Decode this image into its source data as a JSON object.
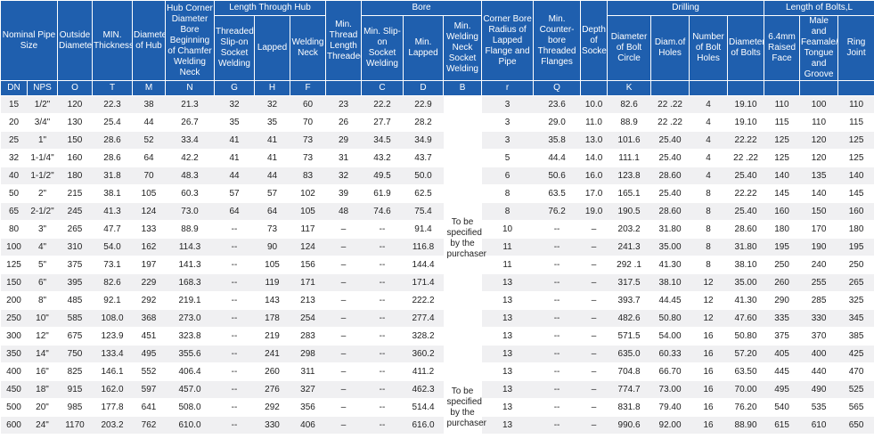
{
  "header": {
    "row1": {
      "nps": "Nominal Pipe Size",
      "o": "Outside Diameter",
      "t": "MIN. Thickness",
      "m": "Diameter of Hub",
      "n": "Hub Corner Diameter Bore Beginning of Chamfer Welding Neck",
      "length_hub": "Length Through Hub",
      "thread": "Min. Thread Length Threaded",
      "bore": "Bore",
      "r": "Corner Bore Radius of Lapped Flange and Pipe",
      "q": "Min. Counter-bore Threaded Flanges",
      "depth": "Depth of Socket",
      "drilling": "Drilling",
      "bolts": "Length of Bolts,L"
    },
    "row2": [
      "Threaded Slip-on Socket Welding",
      "Lapped",
      "Welding Neck",
      "Min. Slip-on Socket Welding",
      "Min. Lapped",
      "Min. Welding Neck Socket Welding",
      "Diameter of Bolt Circle",
      "Diam.of Holes",
      "Number of Bolt Holes",
      "Diameter of Bolts",
      "6.4mm Raised Face",
      "Male and Feamale/ Tongue and Groove",
      "Ring Joint"
    ],
    "symbols": [
      "DN",
      "NPS",
      "O",
      "T",
      "M",
      "N",
      "G",
      "H",
      "F",
      "C",
      "D",
      "B",
      "r",
      "Q",
      "K"
    ]
  },
  "table": {
    "b_column": [
      "To be specified by the purchaser",
      "To be specified by the purchaser"
    ],
    "rows": [
      [
        "15",
        "1/2\"",
        "120",
        "22.3",
        "38",
        "21.3",
        "32",
        "32",
        "60",
        "23",
        "22.2",
        "22.9",
        "3",
        "23.6",
        "10.0",
        "82.6",
        "22 .22",
        "4",
        "19.10",
        "110",
        "100",
        "110"
      ],
      [
        "20",
        "3/4\"",
        "130",
        "25.4",
        "44",
        "26.7",
        "35",
        "35",
        "70",
        "26",
        "27.7",
        "28.2",
        "3",
        "29.0",
        "11.0",
        "88.9",
        "22 .22",
        "4",
        "19.10",
        "115",
        "110",
        "115"
      ],
      [
        "25",
        "1\"",
        "150",
        "28.6",
        "52",
        "33.4",
        "41",
        "41",
        "73",
        "29",
        "34.5",
        "34.9",
        "3",
        "35.8",
        "13.0",
        "101.6",
        "25.40",
        "4",
        "22.22",
        "125",
        "120",
        "125"
      ],
      [
        "32",
        "1-1/4\"",
        "160",
        "28.6",
        "64",
        "42.2",
        "41",
        "41",
        "73",
        "31",
        "43.2",
        "43.7",
        "5",
        "44.4",
        "14.0",
        "111.1",
        "25.40",
        "4",
        "22 .22",
        "125",
        "120",
        "125"
      ],
      [
        "40",
        "1-1/2\"",
        "180",
        "31.8",
        "70",
        "48.3",
        "44",
        "44",
        "83",
        "32",
        "49.5",
        "50.0",
        "6",
        "50.6",
        "16.0",
        "123.8",
        "28.60",
        "4",
        "25.40",
        "140",
        "135",
        "140"
      ],
      [
        "50",
        "2\"",
        "215",
        "38.1",
        "105",
        "60.3",
        "57",
        "57",
        "102",
        "39",
        "61.9",
        "62.5",
        "8",
        "63.5",
        "17.0",
        "165.1",
        "25.40",
        "8",
        "22.22",
        "145",
        "140",
        "145"
      ],
      [
        "65",
        "2-1/2\"",
        "245",
        "41.3",
        "124",
        "73.0",
        "64",
        "64",
        "105",
        "48",
        "74.6",
        "75.4",
        "8",
        "76.2",
        "19.0",
        "190.5",
        "28.60",
        "8",
        "25.40",
        "160",
        "150",
        "160"
      ],
      [
        "80",
        "3\"",
        "265",
        "47.7",
        "133",
        "88.9",
        "--",
        "73",
        "117",
        "–",
        "--",
        "91.4",
        "10",
        "--",
        "–",
        "203.2",
        "31.80",
        "8",
        "28.60",
        "180",
        "170",
        "180"
      ],
      [
        "100",
        "4\"",
        "310",
        "54.0",
        "162",
        "114.3",
        "--",
        "90",
        "124",
        "–",
        "--",
        "116.8",
        "11",
        "--",
        "–",
        "241.3",
        "35.00",
        "8",
        "31.80",
        "195",
        "190",
        "195"
      ],
      [
        "125",
        "5\"",
        "375",
        "73.1",
        "197",
        "141.3",
        "--",
        "105",
        "156",
        "–",
        "--",
        "144.4",
        "11",
        "--",
        "–",
        "292 .1",
        "41.30",
        "8",
        "38.10",
        "250",
        "240",
        "250"
      ],
      [
        "150",
        "6\"",
        "395",
        "82.6",
        "229",
        "168.3",
        "--",
        "119",
        "171",
        "–",
        "--",
        "171.4",
        "13",
        "--",
        "–",
        "317.5",
        "38.10",
        "12",
        "35.00",
        "260",
        "255",
        "265"
      ],
      [
        "200",
        "8\"",
        "485",
        "92.1",
        "292",
        "219.1",
        "--",
        "143",
        "213",
        "–",
        "--",
        "222.2",
        "13",
        "--",
        "–",
        "393.7",
        "44.45",
        "12",
        "41.30",
        "290",
        "285",
        "325"
      ],
      [
        "250",
        "10\"",
        "585",
        "108.0",
        "368",
        "273.0",
        "--",
        "178",
        "254",
        "–",
        "--",
        "277.4",
        "13",
        "--",
        "–",
        "482.6",
        "50.80",
        "12",
        "47.60",
        "335",
        "330",
        "345"
      ],
      [
        "300",
        "12\"",
        "675",
        "123.9",
        "451",
        "323.8",
        "--",
        "219",
        "283",
        "–",
        "--",
        "328.2",
        "13",
        "--",
        "–",
        "571.5",
        "54.00",
        "16",
        "50.80",
        "375",
        "370",
        "385"
      ],
      [
        "350",
        "14\"",
        "750",
        "133.4",
        "495",
        "355.6",
        "--",
        "241",
        "298",
        "–",
        "--",
        "360.2",
        "13",
        "--",
        "–",
        "635.0",
        "60.33",
        "16",
        "57.20",
        "405",
        "400",
        "425"
      ],
      [
        "400",
        "16\"",
        "825",
        "146.1",
        "552",
        "406.4",
        "--",
        "260",
        "311",
        "–",
        "--",
        "411.2",
        "13",
        "--",
        "–",
        "704.8",
        "66.70",
        "16",
        "63.50",
        "445",
        "440",
        "470"
      ],
      [
        "450",
        "18\"",
        "915",
        "162.0",
        "597",
        "457.0",
        "--",
        "276",
        "327",
        "–",
        "--",
        "462.3",
        "13",
        "--",
        "–",
        "774.7",
        "73.00",
        "16",
        "70.00",
        "495",
        "490",
        "525"
      ],
      [
        "500",
        "20\"",
        "985",
        "177.8",
        "641",
        "508.0",
        "--",
        "292",
        "356",
        "–",
        "--",
        "514.4",
        "13",
        "--",
        "–",
        "831.8",
        "79.40",
        "16",
        "76.20",
        "540",
        "535",
        "565"
      ],
      [
        "600",
        "24\"",
        "1170",
        "203.2",
        "762",
        "610.0",
        "--",
        "330",
        "406",
        "–",
        "--",
        "616.0",
        "13",
        "--",
        "–",
        "990.6",
        "92.00",
        "16",
        "88.90",
        "615",
        "610",
        "650"
      ]
    ]
  }
}
